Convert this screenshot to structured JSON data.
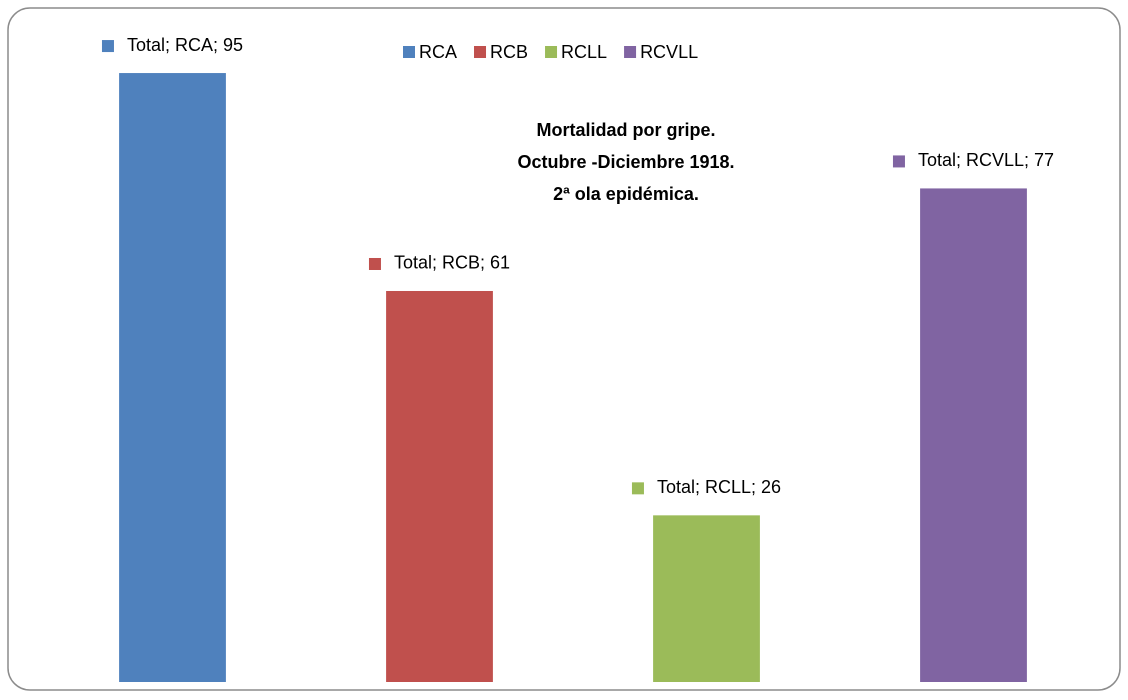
{
  "chart_data": {
    "type": "bar",
    "title": [
      "Mortalidad por gripe.",
      "Octubre -Diciembre 1918.",
      "2ª ola epidémica."
    ],
    "categories": [
      "Total"
    ],
    "series": [
      {
        "name": "RCA",
        "color": "#4f81bd",
        "values": [
          95
        ],
        "value_labels": [
          "Total; RCA; 95"
        ]
      },
      {
        "name": "RCB",
        "color": "#c0504d",
        "values": [
          61
        ],
        "value_labels": [
          "Total; RCB; 61"
        ]
      },
      {
        "name": "RCLL",
        "color": "#9bbb59",
        "values": [
          26
        ],
        "value_labels": [
          "Total; RCLL; 26"
        ]
      },
      {
        "name": "RCVLL",
        "color": "#8064a2",
        "values": [
          77
        ],
        "value_labels": [
          "Total; RCVLL; 77"
        ]
      }
    ],
    "ylim": [
      0,
      100
    ],
    "legend": "top"
  }
}
